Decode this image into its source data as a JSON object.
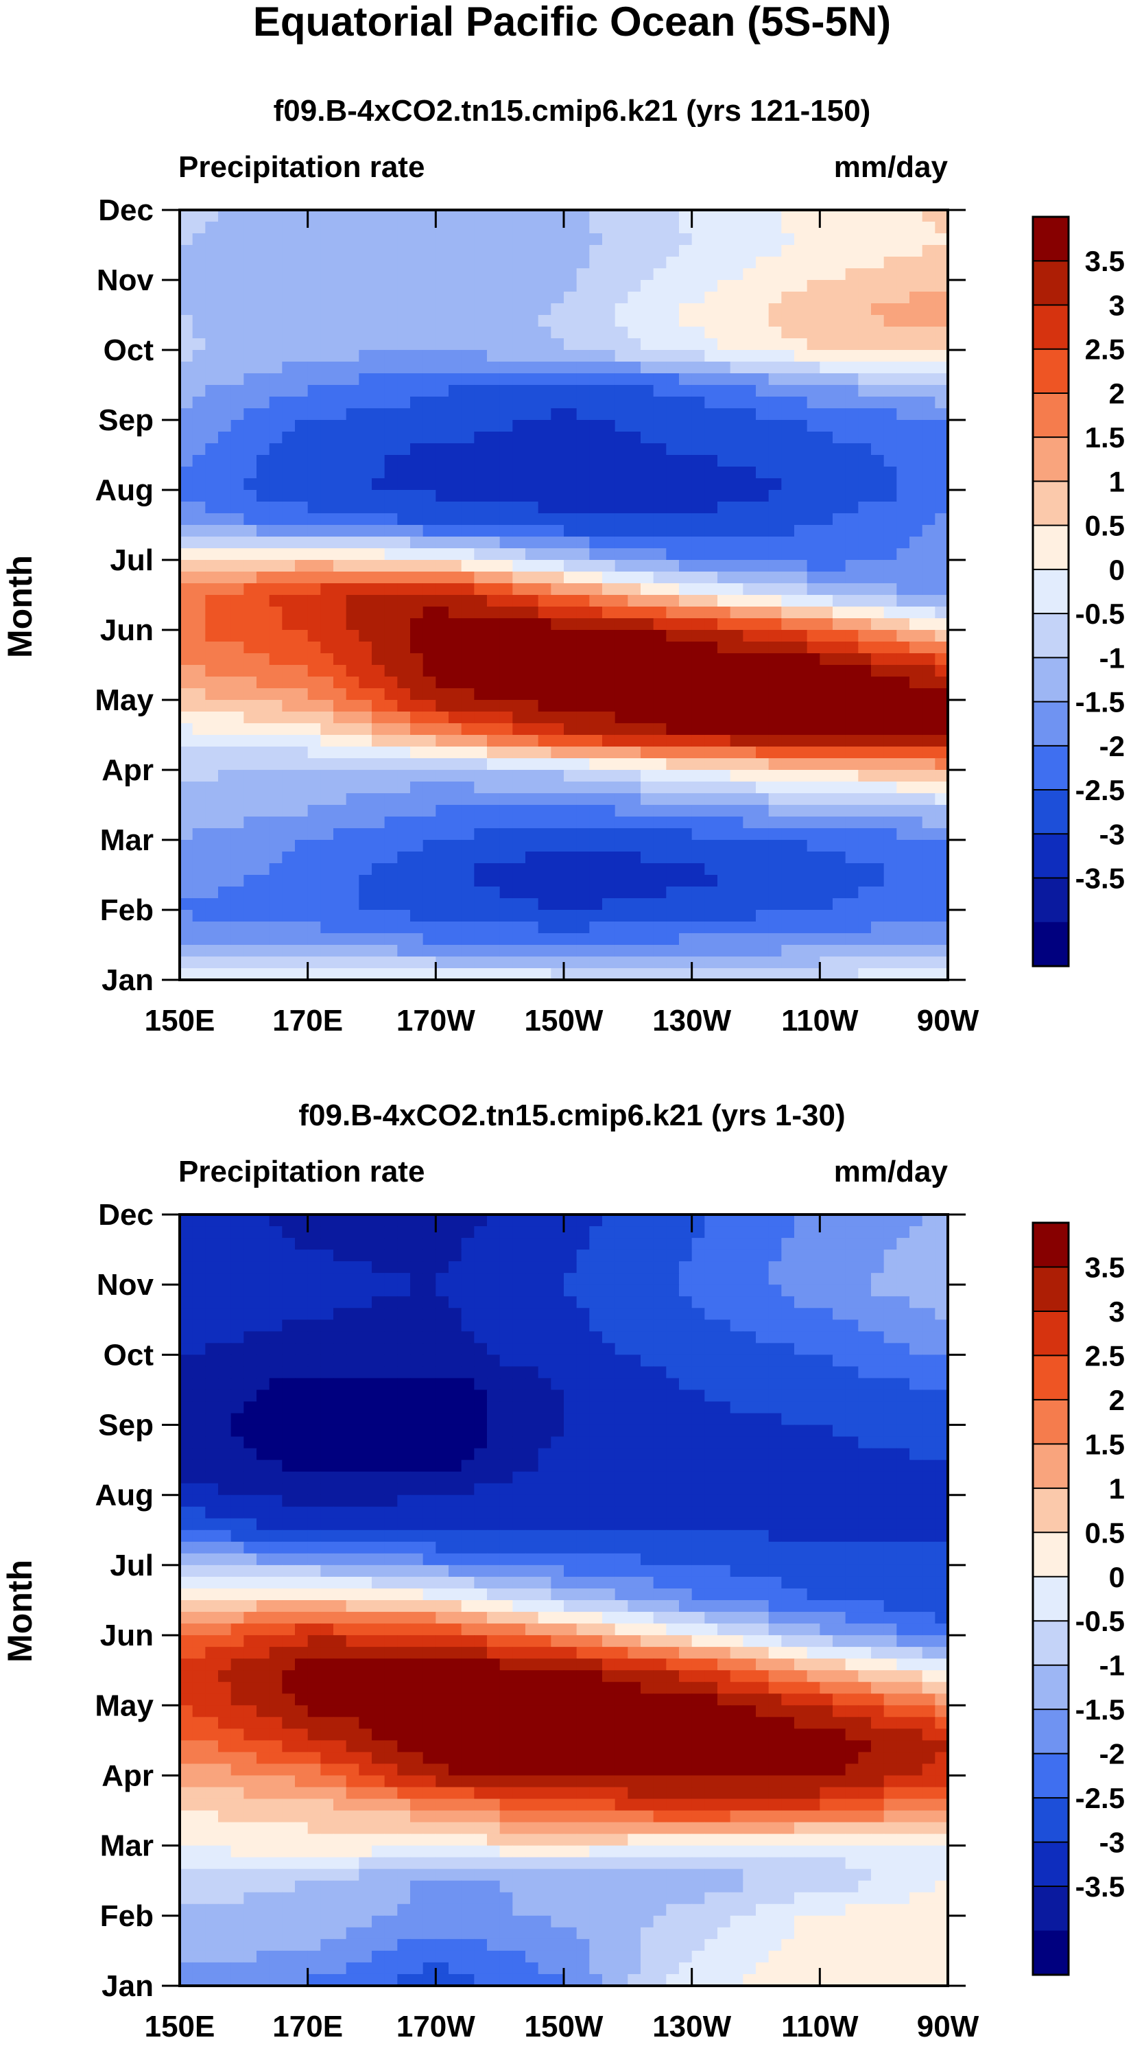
{
  "figure_title": "Equatorial Pacific Ocean (5S-5N)",
  "palette": [
    "#00007f",
    "#0a1a9f",
    "#0e2dbe",
    "#1d4fd9",
    "#3f6ff0",
    "#6f93f2",
    "#9db6f4",
    "#c4d3f8",
    "#e2ecfd",
    "#fff0e1",
    "#fbc9ab",
    "#f9a47d",
    "#f57c4d",
    "#ee5524",
    "#d6330f",
    "#ad1e05",
    "#870000"
  ],
  "chart_data": [
    {
      "type": "heatmap",
      "title": "f09.B-4xCO2.tn15.cmip6.k21 (yrs 121-150)",
      "variable_label": "Precipitation rate",
      "units_label": "mm/day",
      "ylabel": "Month",
      "x_tick_labels": [
        "150E",
        "170E",
        "170W",
        "150W",
        "130W",
        "110W",
        "90W"
      ],
      "x_ticks_lon": [
        150,
        170,
        190,
        210,
        230,
        250,
        270
      ],
      "xlim": [
        150,
        270
      ],
      "y_tick_labels": [
        "Jan",
        "Feb",
        "Mar",
        "Apr",
        "May",
        "Jun",
        "Jul",
        "Aug",
        "Sep",
        "Oct",
        "Nov",
        "Dec"
      ],
      "ylim": [
        0,
        11
      ],
      "colorbar_levels": [
        "3.5",
        "3",
        "2.5",
        "2",
        "1.5",
        "1",
        "0.5",
        "0",
        "-0.5",
        "-1",
        "-1.5",
        "-2",
        "-2.5",
        "-3",
        "-3.5"
      ],
      "rows_month": [
        0,
        0.5,
        1,
        1.5,
        2,
        2.5,
        3,
        3.5,
        4,
        4.5,
        5,
        5.5,
        6,
        6.5,
        7,
        7.5,
        8,
        8.5,
        9,
        9.5,
        10,
        10.5,
        11
      ],
      "cols_lon": [
        150,
        170,
        190,
        210,
        230,
        250,
        270
      ],
      "values": [
        [
          0.2,
          0.3,
          0.4,
          0.3,
          0.1,
          0.2,
          0.3
        ],
        [
          -0.9,
          -1.0,
          -1.4,
          -1.6,
          -1.3,
          -1.2,
          -1.1
        ],
        [
          -1.6,
          -1.9,
          -2.2,
          -2.5,
          -2.3,
          -2.0,
          -1.6
        ],
        [
          -1.2,
          -1.7,
          -2.4,
          -2.9,
          -2.6,
          -2.3,
          -1.8
        ],
        [
          -1.0,
          -1.5,
          -2.0,
          -2.4,
          -2.2,
          -1.9,
          -1.6
        ],
        [
          -0.6,
          -0.9,
          -1.4,
          -1.5,
          -1.1,
          -0.6,
          -0.3
        ],
        [
          -0.4,
          -0.6,
          -0.7,
          -0.3,
          0.6,
          1.2,
          1.6
        ],
        [
          0.3,
          0.6,
          2.0,
          3.4,
          4.0,
          4.2,
          4.3
        ],
        [
          1.3,
          1.8,
          3.8,
          4.3,
          4.5,
          4.5,
          4.4
        ],
        [
          2.0,
          2.6,
          4.2,
          4.4,
          4.4,
          4.3,
          3.2
        ],
        [
          2.4,
          3.1,
          4.3,
          4.3,
          3.8,
          2.6,
          1.0
        ],
        [
          2.3,
          3.3,
          3.9,
          2.4,
          0.8,
          -0.4,
          -1.2
        ],
        [
          1.0,
          1.2,
          0.8,
          -0.5,
          -1.5,
          -1.8,
          -1.3
        ],
        [
          -1.2,
          -1.6,
          -2.0,
          -2.3,
          -2.3,
          -2.0,
          -1.4
        ],
        [
          -1.6,
          -2.4,
          -2.6,
          -2.8,
          -2.9,
          -2.4,
          -1.8
        ],
        [
          -1.4,
          -2.3,
          -2.6,
          -2.7,
          -2.5,
          -2.2,
          -1.8
        ],
        [
          -1.1,
          -2.0,
          -2.3,
          -2.6,
          -2.3,
          -1.9,
          -1.5
        ],
        [
          -0.8,
          -1.4,
          -1.9,
          -2.2,
          -1.8,
          -1.0,
          -0.4
        ],
        [
          -0.4,
          -0.8,
          -1.0,
          -0.5,
          0.3,
          1.0,
          1.2
        ],
        [
          -0.5,
          -0.8,
          -0.9,
          -0.4,
          0.6,
          1.4,
          1.8
        ],
        [
          -0.6,
          -0.9,
          -1.0,
          -0.6,
          0.3,
          1.0,
          1.4
        ],
        [
          -0.5,
          -0.8,
          -0.9,
          -0.7,
          0.0,
          0.6,
          1.0
        ],
        [
          -0.4,
          -0.7,
          -0.8,
          -0.6,
          0.1,
          0.7,
          1.1
        ]
      ]
    },
    {
      "type": "heatmap",
      "title": "f09.B-4xCO2.tn15.cmip6.k21 (yrs 1-30)",
      "variable_label": "Precipitation rate",
      "units_label": "mm/day",
      "ylabel": "Month",
      "x_tick_labels": [
        "150E",
        "170E",
        "170W",
        "150W",
        "130W",
        "110W",
        "90W"
      ],
      "x_ticks_lon": [
        150,
        170,
        190,
        210,
        230,
        250,
        270
      ],
      "xlim": [
        150,
        270
      ],
      "y_tick_labels": [
        "Jan",
        "Feb",
        "Mar",
        "Apr",
        "May",
        "Jun",
        "Jul",
        "Aug",
        "Sep",
        "Oct",
        "Nov",
        "Dec"
      ],
      "ylim": [
        0,
        11
      ],
      "colorbar_levels": [
        "3.5",
        "3",
        "2.5",
        "2",
        "1.5",
        "1",
        "0.5",
        "0",
        "-0.5",
        "-1",
        "-1.5",
        "-2",
        "-2.5",
        "-3",
        "-3.5"
      ],
      "rows_month": [
        0,
        0.5,
        1,
        1.5,
        2,
        2.5,
        3,
        3.5,
        4,
        4.5,
        5,
        5.5,
        6,
        6.5,
        7,
        7.5,
        8,
        8.5,
        9,
        9.5,
        10,
        10.5,
        11
      ],
      "cols_lon": [
        150,
        170,
        190,
        210,
        230,
        250,
        270
      ],
      "values": [
        [
          -1.2,
          -1.6,
          -2.3,
          -1.5,
          0.4,
          0.8,
          1.0
        ],
        [
          -0.8,
          -1.0,
          -1.8,
          -1.3,
          0.0,
          0.8,
          1.0
        ],
        [
          -0.6,
          -0.6,
          -1.2,
          -0.9,
          -0.3,
          0.6,
          0.9
        ],
        [
          -0.3,
          -0.5,
          -1.1,
          -0.9,
          -0.8,
          -0.4,
          0.5
        ],
        [
          0.6,
          0.8,
          0.7,
          0.9,
          0.4,
          0.1,
          0.5
        ],
        [
          1.0,
          1.2,
          1.8,
          2.6,
          3.0,
          2.8,
          1.8
        ],
        [
          1.6,
          2.2,
          3.9,
          4.2,
          4.2,
          4.2,
          3.2
        ],
        [
          2.4,
          3.4,
          4.4,
          4.4,
          4.4,
          4.3,
          3.6
        ],
        [
          3.0,
          4.1,
          4.4,
          4.4,
          4.4,
          3.5,
          2.2
        ],
        [
          3.2,
          4.3,
          4.4,
          4.2,
          3.2,
          1.6,
          0.4
        ],
        [
          2.4,
          3.4,
          3.2,
          2.0,
          0.6,
          -0.8,
          -1.8
        ],
        [
          1.0,
          1.3,
          0.8,
          -0.4,
          -1.4,
          -2.0,
          -2.3
        ],
        [
          -0.6,
          -0.8,
          -1.3,
          -1.7,
          -2.0,
          -2.3,
          -2.4
        ],
        [
          -2.0,
          -2.6,
          -2.7,
          -2.6,
          -2.5,
          -2.6,
          -2.6
        ],
        [
          -2.8,
          -3.2,
          -3.0,
          -2.7,
          -2.5,
          -2.6,
          -2.6
        ],
        [
          -3.2,
          -3.7,
          -3.8,
          -2.8,
          -2.6,
          -2.6,
          -2.5
        ],
        [
          -3.3,
          -3.8,
          -3.9,
          -3.0,
          -2.6,
          -2.5,
          -2.3
        ],
        [
          -3.2,
          -3.7,
          -3.8,
          -3.0,
          -2.5,
          -2.3,
          -2.0
        ],
        [
          -3.0,
          -3.3,
          -3.2,
          -2.7,
          -2.3,
          -2.0,
          -1.4
        ],
        [
          -2.7,
          -3.0,
          -3.1,
          -2.6,
          -2.1,
          -1.6,
          -1.0
        ],
        [
          -2.6,
          -2.9,
          -3.0,
          -2.5,
          -1.9,
          -1.2,
          -0.6
        ],
        [
          -2.7,
          -3.0,
          -3.1,
          -2.6,
          -2.0,
          -1.3,
          -0.8
        ],
        [
          -2.8,
          -3.1,
          -3.2,
          -2.7,
          -2.1,
          -1.4,
          -0.9
        ]
      ]
    }
  ]
}
